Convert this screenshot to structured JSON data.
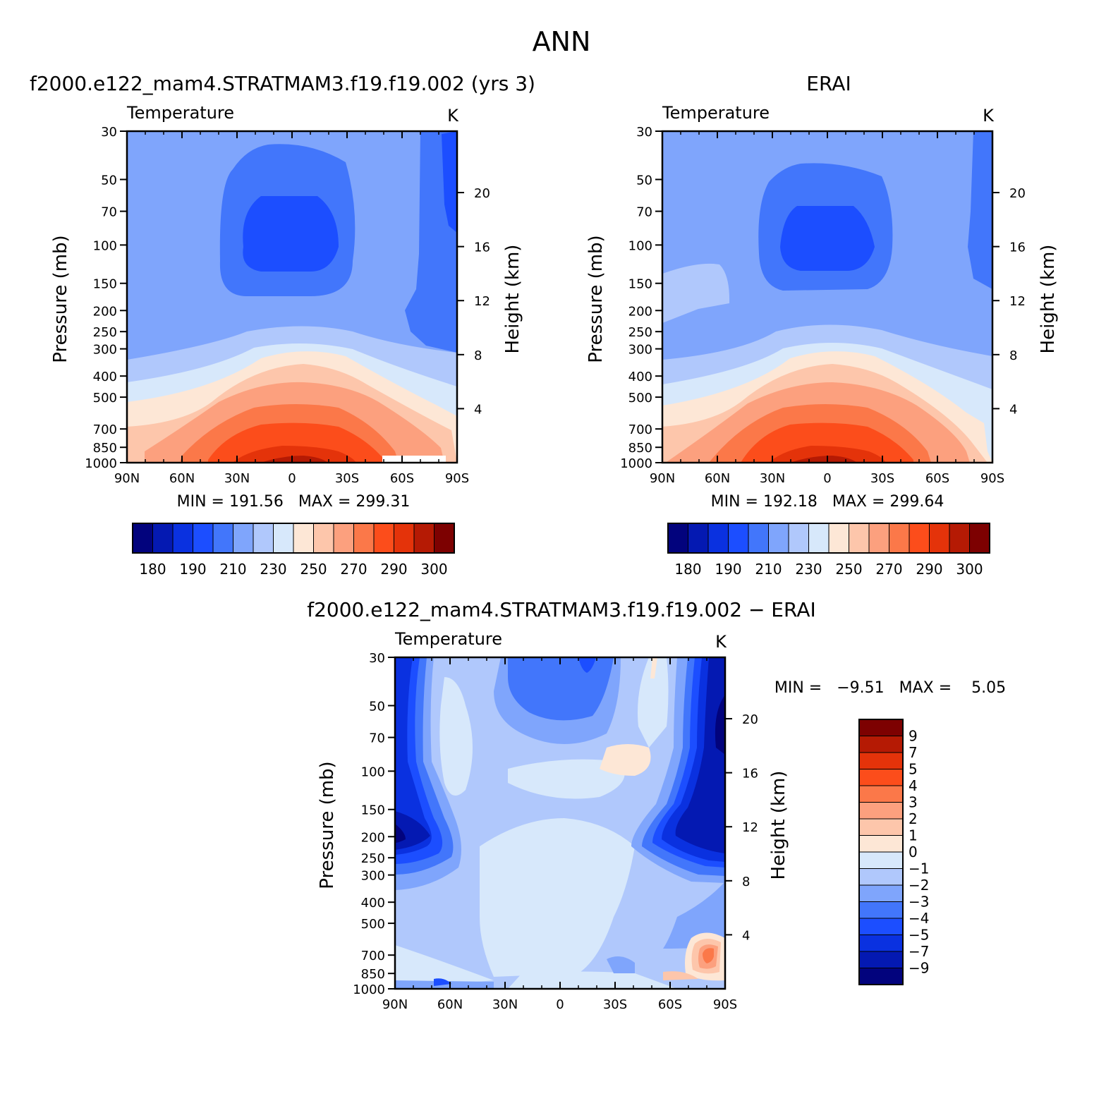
{
  "page_title": "ANN",
  "chart_data": [
    {
      "type": "heatmap",
      "id": "model",
      "title": "f2000.e122_mam4.STRATMAM3.f19.f19.002 (yrs 3)",
      "left_label": "Temperature",
      "right_label": "K",
      "xlabel": "",
      "ylabel": "Pressure (mb)",
      "y2label": "Height (km)",
      "x_ticks": [
        "90N",
        "60N",
        "30N",
        "0",
        "30S",
        "60S",
        "90S"
      ],
      "y_ticks": [
        30,
        50,
        70,
        100,
        150,
        200,
        250,
        300,
        400,
        500,
        700,
        850,
        1000
      ],
      "y2_ticks": [
        20,
        16,
        12,
        8,
        4
      ],
      "ylim": [
        1000,
        30
      ],
      "y_scale": "log",
      "stats": "MIN = 191.56   MAX = 299.31",
      "colorbar_levels": [
        180,
        185,
        190,
        200,
        210,
        220,
        230,
        240,
        250,
        260,
        270,
        280,
        290,
        295,
        300
      ],
      "colorbar_labels": [
        "180",
        "190",
        "210",
        "230",
        "250",
        "270",
        "290",
        "300"
      ],
      "colors": [
        "#02037d",
        "#0419b2",
        "#0a31e0",
        "#1c4eff",
        "#4276fb",
        "#7fa5fc",
        "#b0c8fc",
        "#d7e8fb",
        "#fde7d6",
        "#fdc6ab",
        "#fca07e",
        "#fb7849",
        "#fc4d1b",
        "#e4330a",
        "#b51a04",
        "#7d0101"
      ]
    },
    {
      "type": "heatmap",
      "id": "obs",
      "title": "ERAI",
      "left_label": "Temperature",
      "right_label": "K",
      "xlabel": "",
      "ylabel": "Pressure (mb)",
      "y2label": "Height (km)",
      "x_ticks": [
        "90N",
        "60N",
        "30N",
        "0",
        "30S",
        "60S",
        "90S"
      ],
      "y_ticks": [
        30,
        50,
        70,
        100,
        150,
        200,
        250,
        300,
        400,
        500,
        700,
        850,
        1000
      ],
      "y2_ticks": [
        20,
        16,
        12,
        8,
        4
      ],
      "ylim": [
        1000,
        30
      ],
      "y_scale": "log",
      "stats": "MIN = 192.18   MAX = 299.64",
      "colorbar_labels": [
        "180",
        "190",
        "210",
        "230",
        "250",
        "270",
        "290",
        "300"
      ]
    },
    {
      "type": "heatmap",
      "id": "diff",
      "title": "f2000.e122_mam4.STRATMAM3.f19.f19.002 − ERAI",
      "left_label": "Temperature",
      "right_label": "K",
      "xlabel": "",
      "ylabel": "Pressure (mb)",
      "y2label": "Height (km)",
      "x_ticks": [
        "90N",
        "60N",
        "30N",
        "0",
        "30S",
        "60S",
        "90S"
      ],
      "y_ticks": [
        30,
        50,
        70,
        100,
        150,
        200,
        250,
        300,
        400,
        500,
        700,
        850,
        1000
      ],
      "y2_ticks": [
        20,
        16,
        12,
        8,
        4
      ],
      "ylim": [
        1000,
        30
      ],
      "y_scale": "log",
      "stats": "MIN =   −9.51   MAX =    5.05",
      "colorbar_labels": [
        "9",
        "7",
        "5",
        "4",
        "3",
        "2",
        "1",
        "0",
        "−1",
        "−2",
        "−3",
        "−4",
        "−5",
        "−7",
        "−9"
      ],
      "colors_top_to_bottom": [
        "#7d0101",
        "#b51a04",
        "#e4330a",
        "#fc4d1b",
        "#fb7849",
        "#fca07e",
        "#fdc6ab",
        "#fde7d6",
        "#d7e8fb",
        "#b0c8fc",
        "#7fa5fc",
        "#4276fb",
        "#1c4eff",
        "#0a31e0",
        "#0419b2",
        "#02037d"
      ]
    }
  ]
}
